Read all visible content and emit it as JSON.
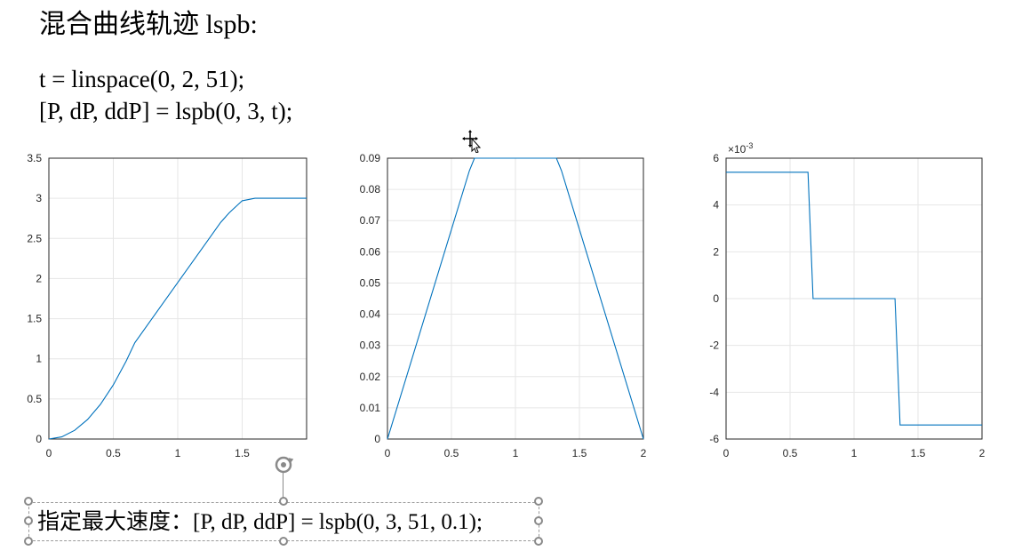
{
  "slide": {
    "title": "混合曲线轨迹 lspb:",
    "code_line1": "t = linspace(0, 2, 51);",
    "code_line2": "[P, dP, ddP] = lspb(0, 3, t);",
    "textbox_text": "指定最大速度：[P, dP, ddP] = lspb(0, 3, 51, 0.1);"
  },
  "colors": {
    "line": "#0072BD",
    "grid": "#e6e6e6",
    "axis": "#262626"
  },
  "chart_data": [
    {
      "type": "line",
      "x": [
        0,
        0.1,
        0.2,
        0.3,
        0.4,
        0.5,
        0.6,
        0.667,
        0.8,
        1.0,
        1.2,
        1.333,
        1.4,
        1.5,
        1.6,
        1.7,
        1.8,
        1.9,
        2.0
      ],
      "y": [
        0,
        0.027,
        0.108,
        0.243,
        0.432,
        0.675,
        0.972,
        1.2,
        1.5,
        1.95,
        2.4,
        2.7,
        2.82,
        2.97,
        3.0,
        3.0,
        3.0,
        3.0,
        3.0
      ],
      "xlim": [
        0,
        2
      ],
      "ylim": [
        0,
        3.5
      ],
      "xticks": [
        "0",
        "0.5",
        "1",
        "1.5"
      ],
      "yticks": [
        "0",
        "0.5",
        "1",
        "1.5",
        "2",
        "2.5",
        "3",
        "3.5"
      ],
      "grid": true
    },
    {
      "type": "line",
      "x": [
        0,
        0.64,
        0.68,
        1.32,
        1.36,
        2.0
      ],
      "y": [
        0,
        0.086,
        0.09,
        0.09,
        0.086,
        0
      ],
      "xlim": [
        0,
        2
      ],
      "ylim": [
        0,
        0.09
      ],
      "xticks": [
        "0",
        "0.5",
        "1",
        "1.5",
        "2"
      ],
      "yticks": [
        "0",
        "0.01",
        "0.02",
        "0.03",
        "0.04",
        "0.05",
        "0.06",
        "0.07",
        "0.08",
        "0.09"
      ],
      "grid": true
    },
    {
      "type": "line",
      "x": [
        0,
        0.64,
        0.68,
        1.32,
        1.36,
        2.0
      ],
      "y": [
        5.4,
        5.4,
        0,
        0,
        -5.4,
        -5.4
      ],
      "xlim": [
        0,
        2
      ],
      "ylim": [
        -6,
        6
      ],
      "xticks": [
        "0",
        "0.5",
        "1",
        "1.5",
        "2"
      ],
      "yticks": [
        "-6",
        "-4",
        "-2",
        "0",
        "2",
        "4",
        "6"
      ],
      "exponent_label": "×10",
      "exponent_power": "-3",
      "grid": true
    }
  ]
}
